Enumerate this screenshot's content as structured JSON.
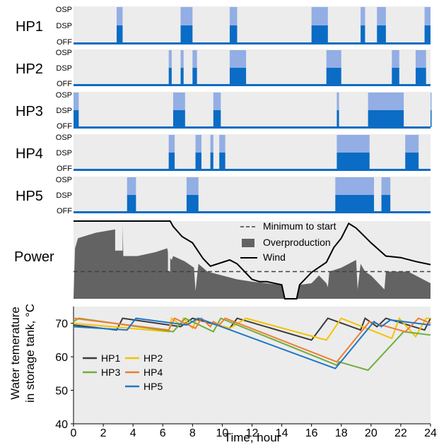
{
  "colors": {
    "panel_bg": "#ececec",
    "osp": "#92aee4",
    "dsp": "#0a6cc4",
    "overproduction": "#636363",
    "wind": "#000000",
    "min_line": "#404040",
    "t_hp1": "#3b3b3b",
    "t_hp2": "#f3c300",
    "t_hp3": "#6fae3c",
    "t_hp4": "#ee7d31",
    "t_hp5": "#1f77c8"
  },
  "state_labels": [
    "OFF",
    "DSP",
    "OSP"
  ],
  "chart_data": [
    {
      "type": "area",
      "title": "",
      "x_range": [
        0,
        24
      ],
      "y_levels": [
        "OFF",
        "DSP",
        "OSP"
      ],
      "units": [
        {
          "name": "HP1",
          "intervals": [
            {
              "start": 2.9,
              "end": 3.3,
              "state": "OSP"
            },
            {
              "start": 7.2,
              "end": 8.0,
              "state": "OSP"
            },
            {
              "start": 10.5,
              "end": 11.0,
              "state": "OSP"
            },
            {
              "start": 16.0,
              "end": 17.1,
              "state": "OSP"
            },
            {
              "start": 19.3,
              "end": 19.6,
              "state": "OSP"
            },
            {
              "start": 20.4,
              "end": 21.0,
              "state": "OSP"
            },
            {
              "start": 23.6,
              "end": 24.1,
              "state": "OSP"
            }
          ]
        },
        {
          "name": "HP2",
          "intervals": [
            {
              "start": 6.4,
              "end": 6.6,
              "state": "OSP"
            },
            {
              "start": 7.2,
              "end": 7.4,
              "state": "OSP"
            },
            {
              "start": 8.0,
              "end": 8.3,
              "state": "OSP"
            },
            {
              "start": 10.5,
              "end": 11.6,
              "state": "OSP"
            },
            {
              "start": 17.0,
              "end": 18.0,
              "state": "OSP"
            },
            {
              "start": 21.4,
              "end": 21.9,
              "state": "OSP"
            },
            {
              "start": 23.0,
              "end": 23.7,
              "state": "OSP"
            }
          ]
        },
        {
          "name": "HP3",
          "intervals": [
            {
              "start": 0.0,
              "end": 0.35,
              "state": "OSP"
            },
            {
              "start": 6.7,
              "end": 7.5,
              "state": "OSP"
            },
            {
              "start": 9.4,
              "end": 9.9,
              "state": "OSP"
            },
            {
              "start": 17.7,
              "end": 17.85,
              "state": "OSP"
            },
            {
              "start": 19.8,
              "end": 22.2,
              "state": "OSP"
            },
            {
              "start": 24.0,
              "end": 24.1,
              "state": "OSP"
            }
          ]
        },
        {
          "name": "HP4",
          "intervals": [
            {
              "start": 6.4,
              "end": 6.8,
              "state": "OSP"
            },
            {
              "start": 8.2,
              "end": 8.6,
              "state": "OSP"
            },
            {
              "start": 9.2,
              "end": 9.4,
              "state": "OSP"
            },
            {
              "start": 9.8,
              "end": 10.2,
              "state": "OSP"
            },
            {
              "start": 17.7,
              "end": 19.9,
              "state": "OSP"
            },
            {
              "start": 22.3,
              "end": 23.2,
              "state": "OSP"
            }
          ]
        },
        {
          "name": "HP5",
          "intervals": [
            {
              "start": 3.6,
              "end": 4.2,
              "state": "OSP"
            },
            {
              "start": 7.6,
              "end": 8.4,
              "state": "OSP"
            },
            {
              "start": 17.6,
              "end": 20.2,
              "state": "OSP"
            },
            {
              "start": 20.7,
              "end": 21.3,
              "state": "OSP"
            }
          ]
        }
      ]
    },
    {
      "type": "area",
      "title": "",
      "ylabel": "Power",
      "x_range": [
        0,
        24
      ],
      "y_range": [
        0,
        1
      ],
      "legend": {
        "position": "top-right",
        "entries": [
          "Minimum to start",
          "Overproduction",
          "Wind"
        ]
      },
      "minimum_to_start": 0.35,
      "wind": {
        "x": [
          0,
          6.5,
          6.7,
          7.3,
          8.0,
          8.7,
          9.2,
          10.5,
          11.0,
          11.5,
          12.0,
          12.5,
          13.0,
          14.0,
          14.2,
          15.0,
          15.2,
          16.0,
          17.0,
          17.5,
          18.0,
          18.5,
          19.0,
          20.0,
          21.0,
          22.0,
          23.0,
          24.0
        ],
        "y": [
          1.0,
          1.0,
          0.93,
          0.8,
          0.72,
          0.52,
          0.42,
          0.5,
          0.45,
          0.35,
          0.25,
          0.22,
          0.22,
          0.18,
          0.0,
          0.0,
          0.18,
          0.34,
          0.47,
          0.66,
          0.78,
          0.97,
          0.91,
          0.72,
          0.55,
          0.53,
          0.48,
          0.44
        ],
        "name": "Wind"
      },
      "overproduction": {
        "x": [
          0,
          0.1,
          0.3,
          1.5,
          3.0,
          3.3,
          3.35,
          4.3,
          5.5,
          6.3,
          6.4,
          6.6,
          6.7,
          7.5,
          8.1,
          8.2,
          8.4,
          9.0,
          10.0,
          11.0,
          12.0,
          13.0,
          14.0,
          14.2,
          15.0,
          15.2,
          16.0,
          16.5,
          17.0,
          17.1,
          17.2,
          18.0,
          19.0,
          19.1,
          19.3,
          19.6,
          20.0,
          20.9,
          21.0,
          22.5,
          23.0,
          24.0
        ],
        "y": [
          0.0,
          0.65,
          0.78,
          0.85,
          0.9,
          0.95,
          0.55,
          0.55,
          0.6,
          0.65,
          0.55,
          0.5,
          0.55,
          0.48,
          0.4,
          0.1,
          0.45,
          0.35,
          0.3,
          0.25,
          0.22,
          0.2,
          0.18,
          0.0,
          0.0,
          0.18,
          0.2,
          0.3,
          0.2,
          0.15,
          0.35,
          0.4,
          0.5,
          0.12,
          0.45,
          0.35,
          0.3,
          0.12,
          0.35,
          0.35,
          0.3,
          0.2
        ],
        "name": "Overproduction"
      }
    },
    {
      "type": "line",
      "title": "",
      "xlabel": "Time, hour",
      "ylabel": "Water temerature in storage tank, °C",
      "xlim": [
        0,
        24
      ],
      "ylim": [
        40,
        75
      ],
      "x_ticks": [
        0,
        2,
        4,
        6,
        8,
        10,
        12,
        14,
        16,
        18,
        20,
        22,
        24
      ],
      "y_ticks": [
        40,
        50,
        60,
        70
      ],
      "legend": {
        "position": "bottom-left"
      },
      "series": [
        {
          "name": "HP1",
          "x": [
            0,
            2.9,
            3.3,
            7.2,
            8.0,
            10.5,
            11.0,
            16.0,
            17.1,
            19.3,
            19.6,
            20.4,
            21.0,
            23.6,
            24.0
          ],
          "y": [
            69.5,
            68,
            71.5,
            69,
            71.5,
            68.5,
            71.5,
            65,
            71.5,
            68,
            71.5,
            69,
            71.5,
            68,
            71.5
          ]
        },
        {
          "name": "HP2",
          "x": [
            0,
            6.4,
            6.6,
            7.2,
            7.4,
            8.0,
            8.3,
            10.5,
            11.6,
            17.0,
            18.0,
            21.4,
            21.9,
            23.0,
            23.7,
            24.0
          ],
          "y": [
            70.0,
            67.5,
            71.5,
            69.5,
            71.5,
            68.5,
            71.5,
            68.5,
            71.5,
            65,
            71.5,
            65.5,
            71.5,
            66,
            71.5,
            71.5
          ]
        },
        {
          "name": "HP3",
          "x": [
            0,
            0.35,
            6.7,
            7.5,
            9.4,
            9.9,
            17.7,
            17.85,
            19.8,
            22.2,
            24.0
          ],
          "y": [
            70.5,
            71.5,
            67.5,
            71.5,
            67.5,
            71.5,
            57.5,
            58.5,
            56.0,
            67.5,
            66.5
          ]
        },
        {
          "name": "HP4",
          "x": [
            0,
            6.4,
            6.8,
            8.2,
            8.6,
            9.2,
            9.4,
            9.8,
            10.2,
            17.7,
            19.9,
            22.3,
            23.2,
            24.0
          ],
          "y": [
            71.5,
            68,
            71.5,
            68.5,
            71.5,
            69,
            70.5,
            69.5,
            71.5,
            58.5,
            70.5,
            67.5,
            71.5,
            70
          ]
        },
        {
          "name": "HP5",
          "x": [
            0,
            3.6,
            4.2,
            7.6,
            8.4,
            17.6,
            20.2,
            20.7,
            21.3,
            24.0
          ],
          "y": [
            69.0,
            68,
            71.5,
            69.5,
            71.5,
            56.5,
            70.5,
            69,
            71,
            69.5
          ]
        }
      ]
    }
  ]
}
